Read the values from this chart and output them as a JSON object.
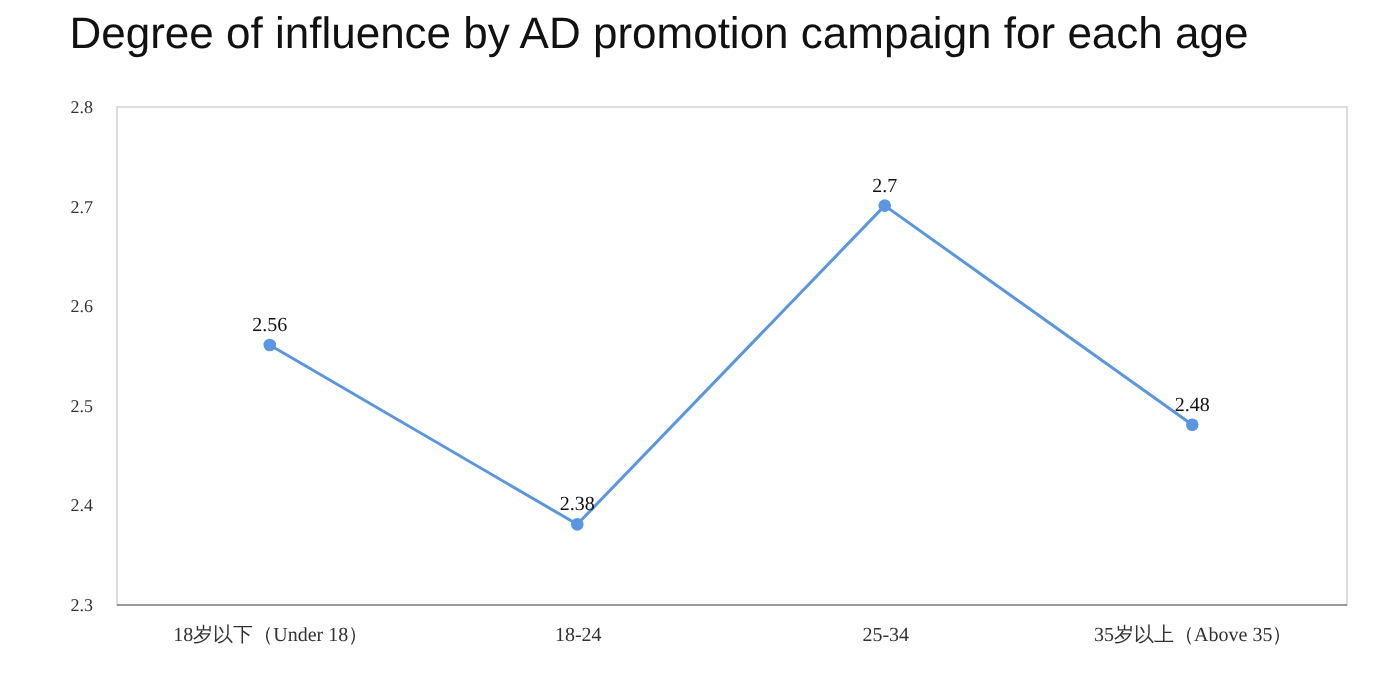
{
  "chart_data": {
    "type": "line",
    "title": "Degree of influence by AD promotion campaign for each age",
    "categories": [
      "18岁以下（Under 18）",
      "18-24",
      "25-34",
      "35岁以上（Above 35）"
    ],
    "values": [
      2.56,
      2.38,
      2.7,
      2.48
    ],
    "color": "#5b96e0",
    "ylim": [
      2.3,
      2.8
    ],
    "yticks": [
      2.3,
      2.4,
      2.5,
      2.6,
      2.7,
      2.8
    ],
    "grid": false,
    "marker": "circle",
    "line_style": "solid",
    "data_labels": true
  }
}
